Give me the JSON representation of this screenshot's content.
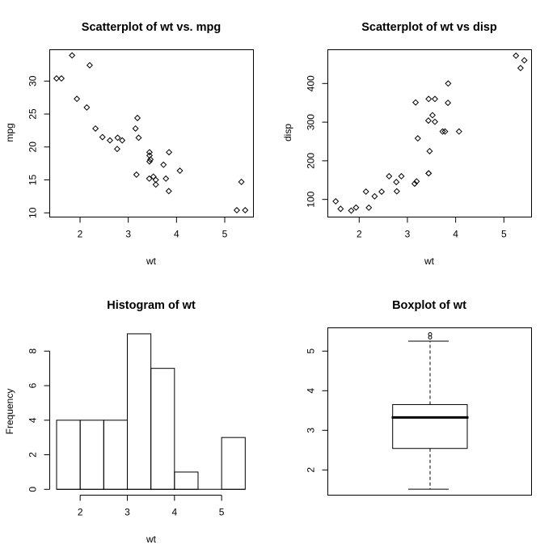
{
  "chart_data": [
    {
      "type": "scatter",
      "title": "Scatterplot of wt vs. mpg",
      "xlabel": "wt",
      "ylabel": "mpg",
      "xticks": [
        2,
        3,
        4,
        5
      ],
      "yticks": [
        10,
        15,
        20,
        25,
        30
      ],
      "x": [
        2.62,
        2.875,
        2.32,
        3.215,
        3.44,
        3.46,
        3.57,
        3.19,
        3.15,
        3.44,
        3.44,
        4.07,
        3.73,
        3.78,
        5.25,
        5.424,
        5.345,
        2.2,
        1.615,
        1.835,
        2.465,
        3.52,
        3.435,
        3.84,
        3.845,
        1.935,
        2.14,
        1.513,
        3.17,
        2.77,
        3.57,
        2.78
      ],
      "y": [
        21.0,
        21.0,
        22.8,
        21.4,
        18.7,
        18.1,
        14.3,
        24.4,
        22.8,
        19.2,
        17.8,
        16.4,
        17.3,
        15.2,
        10.4,
        10.4,
        14.7,
        32.4,
        30.4,
        33.9,
        21.5,
        15.5,
        15.2,
        13.3,
        19.2,
        27.3,
        26.0,
        30.4,
        15.8,
        19.7,
        15.0,
        21.4
      ],
      "grid": false
    },
    {
      "type": "scatter",
      "title": "Scatterplot of wt vs disp",
      "xlabel": "wt",
      "ylabel": "disp",
      "xticks": [
        2,
        3,
        4,
        5
      ],
      "yticks": [
        100,
        200,
        300,
        400
      ],
      "x": [
        2.62,
        2.875,
        2.32,
        3.215,
        3.44,
        3.46,
        3.57,
        3.19,
        3.15,
        3.44,
        3.44,
        4.07,
        3.73,
        3.78,
        5.25,
        5.424,
        5.345,
        2.2,
        1.615,
        1.835,
        2.465,
        3.52,
        3.435,
        3.84,
        3.845,
        1.935,
        2.14,
        1.513,
        3.17,
        2.77,
        3.57,
        2.78
      ],
      "y": [
        160,
        160,
        108,
        258,
        360,
        225,
        360,
        146.7,
        140.8,
        167.6,
        167.6,
        275.8,
        275.8,
        275.8,
        472,
        460,
        440,
        78.7,
        75.7,
        71.1,
        120.1,
        318,
        304,
        350,
        400,
        79,
        120.3,
        95.1,
        351,
        145,
        301,
        121
      ],
      "grid": false
    },
    {
      "type": "bar",
      "title": "Histogram of wt",
      "xlabel": "wt",
      "ylabel": "Frequency",
      "breaks": [
        1.5,
        2.0,
        2.5,
        3.0,
        3.5,
        4.0,
        4.5,
        5.0,
        5.5
      ],
      "values": [
        4,
        4,
        4,
        9,
        7,
        1,
        0,
        3
      ],
      "xticks": [
        2,
        3,
        4,
        5
      ],
      "yticks": [
        0,
        2,
        4,
        6,
        8
      ]
    },
    {
      "type": "boxplot",
      "title": "Boxplot of wt",
      "yticks": [
        2,
        3,
        4,
        5
      ],
      "min": 1.513,
      "q1": 2.5425,
      "median": 3.325,
      "q3": 3.65,
      "whisker_high": 5.25,
      "outliers": [
        5.345,
        5.424
      ]
    }
  ]
}
